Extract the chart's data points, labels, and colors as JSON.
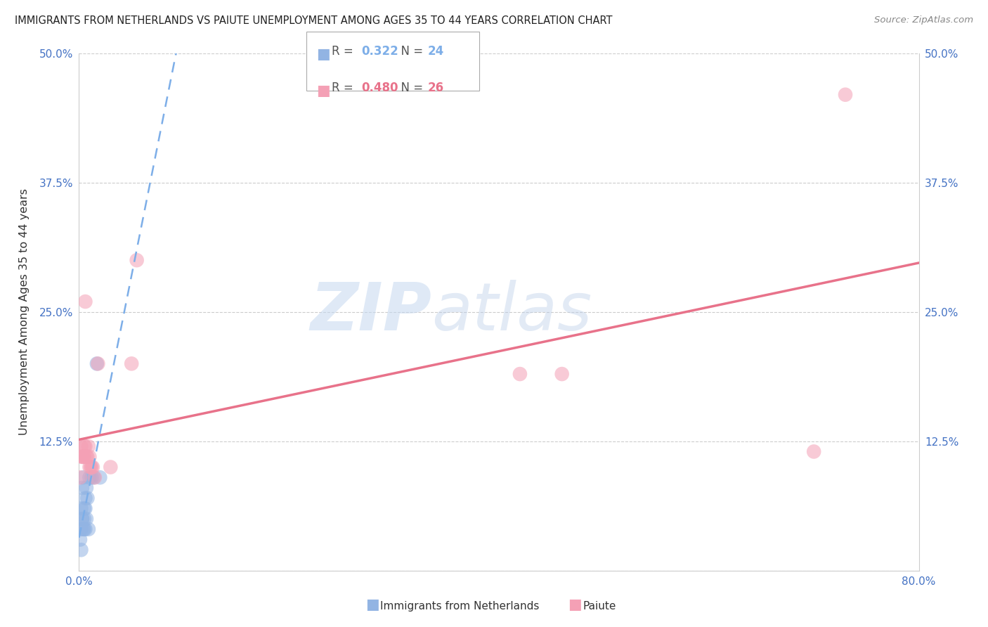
{
  "title": "IMMIGRANTS FROM NETHERLANDS VS PAIUTE UNEMPLOYMENT AMONG AGES 35 TO 44 YEARS CORRELATION CHART",
  "source": "Source: ZipAtlas.com",
  "ylabel_label": "Unemployment Among Ages 35 to 44 years",
  "xlim": [
    0.0,
    0.8
  ],
  "ylim": [
    0.0,
    0.5
  ],
  "xticks": [
    0.0,
    0.16,
    0.32,
    0.48,
    0.64,
    0.8
  ],
  "yticks": [
    0.0,
    0.125,
    0.25,
    0.375,
    0.5
  ],
  "xticklabels": [
    "0.0%",
    "",
    "",
    "",
    "",
    "80.0%"
  ],
  "ylabels_left": [
    "",
    "12.5%",
    "25.0%",
    "37.5%",
    "50.0%"
  ],
  "ylabels_right": [
    "",
    "12.5%",
    "25.0%",
    "37.5%",
    "50.0%"
  ],
  "blue_R": "0.322",
  "blue_N": "24",
  "pink_R": "0.480",
  "pink_N": "26",
  "blue_color": "#92b4e3",
  "pink_color": "#f4a0b5",
  "blue_line_color": "#7daee8",
  "pink_line_color": "#e8728a",
  "watermark_zip": "ZIP",
  "watermark_atlas": "atlas",
  "blue_points_x": [
    0.001,
    0.002,
    0.002,
    0.002,
    0.003,
    0.003,
    0.003,
    0.004,
    0.004,
    0.005,
    0.005,
    0.005,
    0.006,
    0.006,
    0.006,
    0.007,
    0.007,
    0.008,
    0.009,
    0.01,
    0.012,
    0.014,
    0.017,
    0.02
  ],
  "blue_points_y": [
    0.03,
    0.06,
    0.04,
    0.02,
    0.08,
    0.05,
    0.05,
    0.04,
    0.09,
    0.06,
    0.05,
    0.04,
    0.07,
    0.04,
    0.06,
    0.05,
    0.08,
    0.07,
    0.04,
    0.09,
    0.09,
    0.09,
    0.2,
    0.09
  ],
  "pink_points_x": [
    0.001,
    0.002,
    0.003,
    0.003,
    0.004,
    0.005,
    0.005,
    0.006,
    0.006,
    0.007,
    0.008,
    0.009,
    0.01,
    0.01,
    0.011,
    0.012,
    0.013,
    0.015,
    0.018,
    0.03,
    0.05,
    0.055,
    0.42,
    0.46,
    0.7,
    0.73
  ],
  "pink_points_y": [
    0.09,
    0.12,
    0.11,
    0.11,
    0.11,
    0.12,
    0.11,
    0.26,
    0.12,
    0.11,
    0.11,
    0.12,
    0.11,
    0.1,
    0.1,
    0.1,
    0.1,
    0.09,
    0.2,
    0.1,
    0.2,
    0.3,
    0.19,
    0.19,
    0.115,
    0.46
  ],
  "blue_trend_x": [
    0.0,
    0.03
  ],
  "blue_trend_y": [
    0.075,
    0.155
  ],
  "pink_trend_x": [
    0.0,
    0.8
  ],
  "pink_trend_y": [
    0.115,
    0.255
  ]
}
